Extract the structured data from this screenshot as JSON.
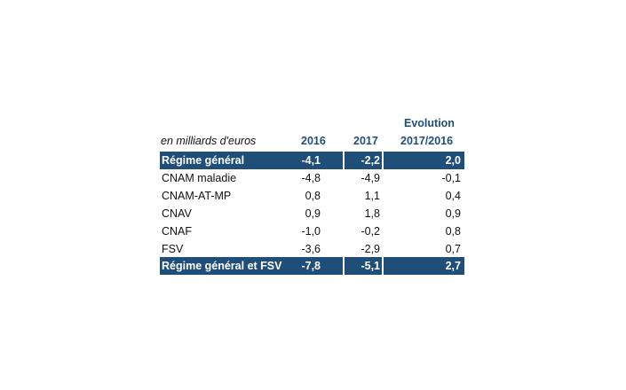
{
  "table": {
    "unit_label": "en milliards d'euros",
    "headers": {
      "col1": "2016",
      "col2": "2017",
      "col3_line1": "Evolution",
      "col3_line2": "2017/2016"
    },
    "rows": [
      {
        "label": "Régime général",
        "v2016": "-4,1",
        "v2017": "-2,2",
        "evol": "2,0"
      },
      {
        "label": "CNAM maladie",
        "v2016": "-4,8",
        "v2017": "-4,9",
        "evol": "-0,1"
      },
      {
        "label": "CNAM-AT-MP",
        "v2016": "0,8",
        "v2017": "1,1",
        "evol": "0,4"
      },
      {
        "label": "CNAV",
        "v2016": "0,9",
        "v2017": "1,8",
        "evol": "0,9"
      },
      {
        "label": "CNAF",
        "v2016": "-1,0",
        "v2017": "-0,2",
        "evol": "0,8"
      },
      {
        "label": "FSV",
        "v2016": "-3,6",
        "v2017": "-2,9",
        "evol": "0,7"
      },
      {
        "label": "Régime général et FSV",
        "v2016": "-7,8",
        "v2017": "-5,1",
        "evol": "2,7"
      }
    ],
    "colors": {
      "band": "#1f4e79",
      "header_text": "#1f4e79"
    }
  }
}
